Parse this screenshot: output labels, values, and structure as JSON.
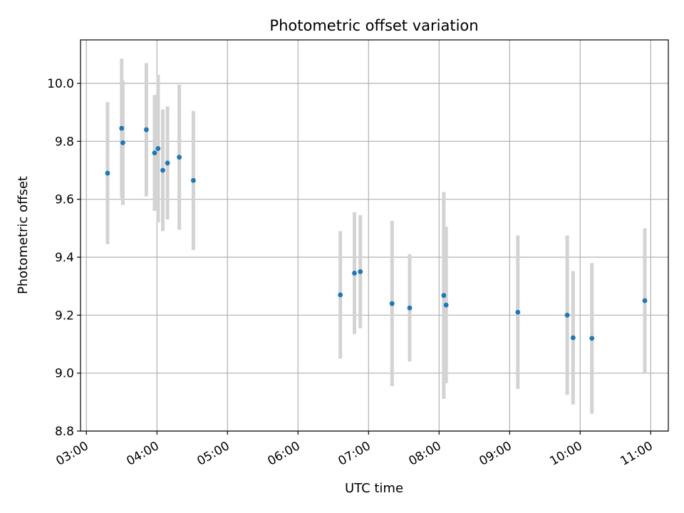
{
  "chart_data": {
    "type": "scatter",
    "title": "Photometric offset variation",
    "xlabel": "UTC time",
    "ylabel": "Photometric offset",
    "xlim": [
      "02:55",
      "11:15"
    ],
    "ylim": [
      8.8,
      10.15
    ],
    "grid": true,
    "x_ticks": [
      "03:00",
      "04:00",
      "05:00",
      "06:00",
      "07:00",
      "08:00",
      "09:00",
      "10:00",
      "11:00"
    ],
    "y_ticks": [
      "8.8",
      "9.0",
      "9.2",
      "9.4",
      "9.6",
      "9.8",
      "10.0"
    ],
    "series": [
      {
        "point_color": "#1f77b4",
        "errorbar_color": "#d3d3d3",
        "points": [
          {
            "x": "03:18",
            "y": 9.69,
            "err": 0.245
          },
          {
            "x": "03:30",
            "y": 9.845,
            "err": 0.24
          },
          {
            "x": "03:31",
            "y": 9.795,
            "err": 0.215
          },
          {
            "x": "03:51",
            "y": 9.84,
            "err": 0.23
          },
          {
            "x": "03:58",
            "y": 9.76,
            "err": 0.2
          },
          {
            "x": "04:01",
            "y": 9.775,
            "err": 0.255
          },
          {
            "x": "04:05",
            "y": 9.7,
            "err": 0.21
          },
          {
            "x": "04:09",
            "y": 9.725,
            "err": 0.195
          },
          {
            "x": "04:19",
            "y": 9.745,
            "err": 0.25
          },
          {
            "x": "04:31",
            "y": 9.665,
            "err": 0.24
          },
          {
            "x": "06:36",
            "y": 9.27,
            "err": 0.22
          },
          {
            "x": "06:48",
            "y": 9.345,
            "err": 0.21
          },
          {
            "x": "06:53",
            "y": 9.35,
            "err": 0.195
          },
          {
            "x": "07:20",
            "y": 9.24,
            "err": 0.285
          },
          {
            "x": "07:35",
            "y": 9.225,
            "err": 0.185
          },
          {
            "x": "08:04",
            "y": 9.268,
            "err": 0.357
          },
          {
            "x": "08:06",
            "y": 9.235,
            "err": 0.27
          },
          {
            "x": "09:07",
            "y": 9.21,
            "err": 0.265
          },
          {
            "x": "09:49",
            "y": 9.2,
            "err": 0.275
          },
          {
            "x": "09:54",
            "y": 9.122,
            "err": 0.23
          },
          {
            "x": "10:10",
            "y": 9.12,
            "err": 0.26
          },
          {
            "x": "10:55",
            "y": 9.25,
            "err": 0.25
          }
        ]
      }
    ]
  }
}
